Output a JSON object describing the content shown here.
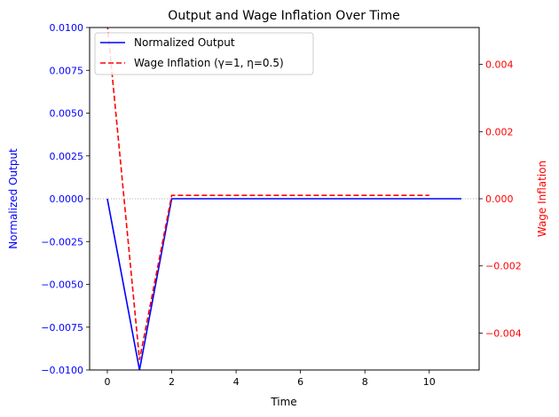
{
  "chart_data": {
    "type": "line",
    "title": "Output and Wage Inflation Over Time",
    "xlabel": "Time",
    "ylabel_left": "Normalized Output",
    "ylabel_right": "Wage Inflation",
    "xlim": [
      -0.55,
      11.55
    ],
    "ylim_left": [
      -0.01,
      0.01
    ],
    "ylim_right": [
      -0.0051,
      0.0051
    ],
    "xticks": [
      0,
      2,
      4,
      6,
      8,
      10
    ],
    "yticks_left": [
      -0.01,
      -0.0075,
      -0.005,
      -0.0025,
      0.0,
      0.0025,
      0.005,
      0.0075,
      0.01
    ],
    "yticks_left_labels": [
      "−0.0100",
      "−0.0075",
      "−0.0050",
      "−0.0025",
      "0.0000",
      "0.0025",
      "0.0050",
      "0.0075",
      "0.0100"
    ],
    "yticks_right": [
      -0.004,
      -0.002,
      0.0,
      0.002,
      0.004
    ],
    "yticks_right_labels": [
      "−0.004",
      "−0.002",
      "0.000",
      "0.002",
      "0.004"
    ],
    "legend_position": "top-left",
    "grid": false,
    "reference_line": {
      "y": 0,
      "style": "dotted",
      "color": "#999999"
    },
    "series": [
      {
        "name": "Normalized Output",
        "axis": "left",
        "color": "#0000ff",
        "linestyle": "solid",
        "x": [
          0,
          1,
          2,
          3,
          4,
          5,
          6,
          7,
          8,
          9,
          10,
          11
        ],
        "y": [
          0,
          -0.01,
          0,
          0,
          0,
          0,
          0,
          0,
          0,
          0,
          0,
          0
        ]
      },
      {
        "name": "Wage Inflation (γ=1, η=0.5)",
        "axis": "right",
        "color": "#ff0000",
        "linestyle": "dashed",
        "x": [
          0,
          1,
          2,
          3,
          4,
          5,
          6,
          7,
          8,
          9,
          10
        ],
        "y": [
          0.0052,
          -0.0048,
          0.0001,
          0.0001,
          0.0001,
          0.0001,
          0.0001,
          0.0001,
          0.0001,
          0.0001,
          0.0001
        ]
      }
    ]
  }
}
